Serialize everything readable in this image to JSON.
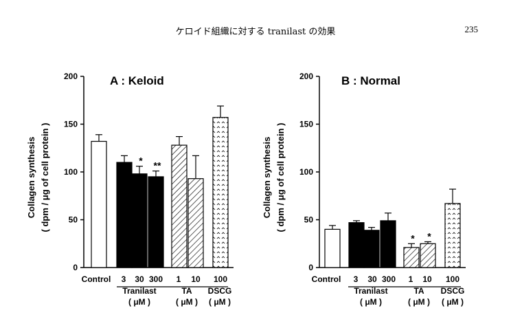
{
  "header": {
    "title": "ケロイド組織に対する tranilast の効果",
    "page_number": "235"
  },
  "colors": {
    "black": "#000000",
    "white": "#ffffff"
  },
  "chart_data": [
    {
      "type": "bar",
      "title": "A : Keloid",
      "ylabel_line1": "Collagen synthesis",
      "ylabel_line2": "( dpm / μg of cell protein )",
      "ylim": [
        0,
        200
      ],
      "yticks": [
        "0",
        "50",
        "100",
        "150",
        "200"
      ],
      "bars": [
        {
          "label": "Control",
          "value": 132,
          "error": 7,
          "fill": "white",
          "sig": ""
        },
        {
          "label": "3",
          "value": 110,
          "error": 7,
          "fill": "black",
          "sig": ""
        },
        {
          "label": "30",
          "value": 98,
          "error": 8,
          "fill": "black",
          "sig": "*"
        },
        {
          "label": "300",
          "value": 95,
          "error": 6,
          "fill": "black",
          "sig": "**"
        },
        {
          "label": "1",
          "value": 128,
          "error": 9,
          "fill": "hatch",
          "sig": ""
        },
        {
          "label": "10",
          "value": 93,
          "error": 24,
          "fill": "hatch",
          "sig": ""
        },
        {
          "label": "100",
          "value": 157,
          "error": 12,
          "fill": "dotted",
          "sig": ""
        }
      ],
      "groups": [
        {
          "line1": "Tranilast",
          "line2": "( μM )"
        },
        {
          "line1": "TA",
          "line2": "( μM )"
        },
        {
          "line1": "DSCG",
          "line2": "( μM )"
        }
      ]
    },
    {
      "type": "bar",
      "title": "B : Normal",
      "ylabel_line1": "Collagen synthesis",
      "ylabel_line2": "( dpm / μg of cell protein )",
      "ylim": [
        0,
        200
      ],
      "yticks": [
        "0",
        "50",
        "100",
        "150",
        "200"
      ],
      "bars": [
        {
          "label": "Control",
          "value": 40,
          "error": 4,
          "fill": "white",
          "sig": ""
        },
        {
          "label": "3",
          "value": 47,
          "error": 2,
          "fill": "black",
          "sig": ""
        },
        {
          "label": "30",
          "value": 39,
          "error": 3,
          "fill": "black",
          "sig": ""
        },
        {
          "label": "300",
          "value": 49,
          "error": 8,
          "fill": "black",
          "sig": ""
        },
        {
          "label": "1",
          "value": 21,
          "error": 4,
          "fill": "hatch",
          "sig": "*"
        },
        {
          "label": "10",
          "value": 25,
          "error": 2,
          "fill": "hatch",
          "sig": "*"
        },
        {
          "label": "100",
          "value": 67,
          "error": 15,
          "fill": "dotted",
          "sig": ""
        }
      ],
      "groups": [
        {
          "line1": "Tranilast",
          "line2": "( μM )"
        },
        {
          "line1": "TA",
          "line2": "( μM )"
        },
        {
          "line1": "DSCG",
          "line2": "( μM )"
        }
      ]
    }
  ]
}
